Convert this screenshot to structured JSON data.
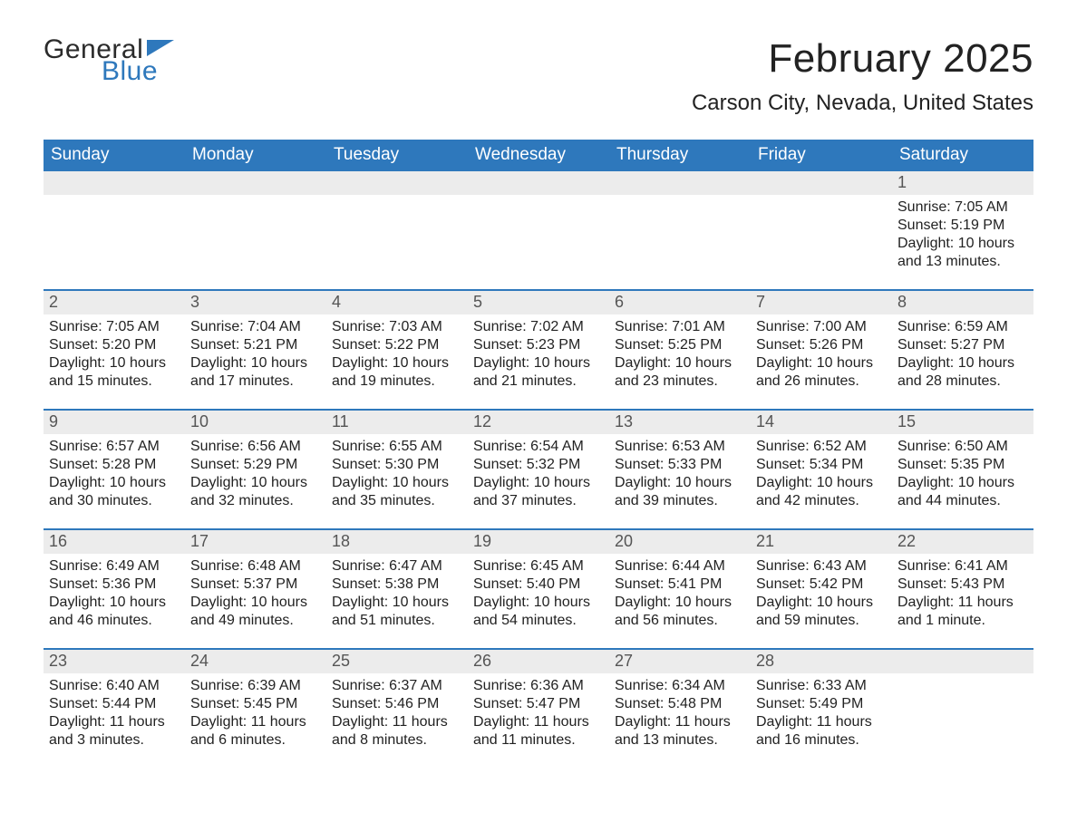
{
  "logo": {
    "word1": "General",
    "word2": "Blue",
    "word1_color": "#2b2b2b",
    "word2_color": "#2e78bc",
    "flag_color": "#2e78bc"
  },
  "header": {
    "title": "February 2025",
    "location": "Carson City, Nevada, United States",
    "title_fontsize": 44,
    "location_fontsize": 24
  },
  "colors": {
    "header_bar_bg": "#2e78bc",
    "header_bar_text": "#ffffff",
    "daynum_bg": "#ececec",
    "daynum_text": "#555555",
    "body_text": "#222222",
    "week_divider": "#2e78bc",
    "page_bg": "#ffffff"
  },
  "typography": {
    "weekday_fontsize": 19,
    "daynum_fontsize": 18,
    "cell_fontsize": 16,
    "font_family": "Arial"
  },
  "weekdays": [
    "Sunday",
    "Monday",
    "Tuesday",
    "Wednesday",
    "Thursday",
    "Friday",
    "Saturday"
  ],
  "weeks": [
    [
      null,
      null,
      null,
      null,
      null,
      null,
      {
        "day": "1",
        "sunrise": "Sunrise: 7:05 AM",
        "sunset": "Sunset: 5:19 PM",
        "daylight": "Daylight: 10 hours and 13 minutes."
      }
    ],
    [
      {
        "day": "2",
        "sunrise": "Sunrise: 7:05 AM",
        "sunset": "Sunset: 5:20 PM",
        "daylight": "Daylight: 10 hours and 15 minutes."
      },
      {
        "day": "3",
        "sunrise": "Sunrise: 7:04 AM",
        "sunset": "Sunset: 5:21 PM",
        "daylight": "Daylight: 10 hours and 17 minutes."
      },
      {
        "day": "4",
        "sunrise": "Sunrise: 7:03 AM",
        "sunset": "Sunset: 5:22 PM",
        "daylight": "Daylight: 10 hours and 19 minutes."
      },
      {
        "day": "5",
        "sunrise": "Sunrise: 7:02 AM",
        "sunset": "Sunset: 5:23 PM",
        "daylight": "Daylight: 10 hours and 21 minutes."
      },
      {
        "day": "6",
        "sunrise": "Sunrise: 7:01 AM",
        "sunset": "Sunset: 5:25 PM",
        "daylight": "Daylight: 10 hours and 23 minutes."
      },
      {
        "day": "7",
        "sunrise": "Sunrise: 7:00 AM",
        "sunset": "Sunset: 5:26 PM",
        "daylight": "Daylight: 10 hours and 26 minutes."
      },
      {
        "day": "8",
        "sunrise": "Sunrise: 6:59 AM",
        "sunset": "Sunset: 5:27 PM",
        "daylight": "Daylight: 10 hours and 28 minutes."
      }
    ],
    [
      {
        "day": "9",
        "sunrise": "Sunrise: 6:57 AM",
        "sunset": "Sunset: 5:28 PM",
        "daylight": "Daylight: 10 hours and 30 minutes."
      },
      {
        "day": "10",
        "sunrise": "Sunrise: 6:56 AM",
        "sunset": "Sunset: 5:29 PM",
        "daylight": "Daylight: 10 hours and 32 minutes."
      },
      {
        "day": "11",
        "sunrise": "Sunrise: 6:55 AM",
        "sunset": "Sunset: 5:30 PM",
        "daylight": "Daylight: 10 hours and 35 minutes."
      },
      {
        "day": "12",
        "sunrise": "Sunrise: 6:54 AM",
        "sunset": "Sunset: 5:32 PM",
        "daylight": "Daylight: 10 hours and 37 minutes."
      },
      {
        "day": "13",
        "sunrise": "Sunrise: 6:53 AM",
        "sunset": "Sunset: 5:33 PM",
        "daylight": "Daylight: 10 hours and 39 minutes."
      },
      {
        "day": "14",
        "sunrise": "Sunrise: 6:52 AM",
        "sunset": "Sunset: 5:34 PM",
        "daylight": "Daylight: 10 hours and 42 minutes."
      },
      {
        "day": "15",
        "sunrise": "Sunrise: 6:50 AM",
        "sunset": "Sunset: 5:35 PM",
        "daylight": "Daylight: 10 hours and 44 minutes."
      }
    ],
    [
      {
        "day": "16",
        "sunrise": "Sunrise: 6:49 AM",
        "sunset": "Sunset: 5:36 PM",
        "daylight": "Daylight: 10 hours and 46 minutes."
      },
      {
        "day": "17",
        "sunrise": "Sunrise: 6:48 AM",
        "sunset": "Sunset: 5:37 PM",
        "daylight": "Daylight: 10 hours and 49 minutes."
      },
      {
        "day": "18",
        "sunrise": "Sunrise: 6:47 AM",
        "sunset": "Sunset: 5:38 PM",
        "daylight": "Daylight: 10 hours and 51 minutes."
      },
      {
        "day": "19",
        "sunrise": "Sunrise: 6:45 AM",
        "sunset": "Sunset: 5:40 PM",
        "daylight": "Daylight: 10 hours and 54 minutes."
      },
      {
        "day": "20",
        "sunrise": "Sunrise: 6:44 AM",
        "sunset": "Sunset: 5:41 PM",
        "daylight": "Daylight: 10 hours and 56 minutes."
      },
      {
        "day": "21",
        "sunrise": "Sunrise: 6:43 AM",
        "sunset": "Sunset: 5:42 PM",
        "daylight": "Daylight: 10 hours and 59 minutes."
      },
      {
        "day": "22",
        "sunrise": "Sunrise: 6:41 AM",
        "sunset": "Sunset: 5:43 PM",
        "daylight": "Daylight: 11 hours and 1 minute."
      }
    ],
    [
      {
        "day": "23",
        "sunrise": "Sunrise: 6:40 AM",
        "sunset": "Sunset: 5:44 PM",
        "daylight": "Daylight: 11 hours and 3 minutes."
      },
      {
        "day": "24",
        "sunrise": "Sunrise: 6:39 AM",
        "sunset": "Sunset: 5:45 PM",
        "daylight": "Daylight: 11 hours and 6 minutes."
      },
      {
        "day": "25",
        "sunrise": "Sunrise: 6:37 AM",
        "sunset": "Sunset: 5:46 PM",
        "daylight": "Daylight: 11 hours and 8 minutes."
      },
      {
        "day": "26",
        "sunrise": "Sunrise: 6:36 AM",
        "sunset": "Sunset: 5:47 PM",
        "daylight": "Daylight: 11 hours and 11 minutes."
      },
      {
        "day": "27",
        "sunrise": "Sunrise: 6:34 AM",
        "sunset": "Sunset: 5:48 PM",
        "daylight": "Daylight: 11 hours and 13 minutes."
      },
      {
        "day": "28",
        "sunrise": "Sunrise: 6:33 AM",
        "sunset": "Sunset: 5:49 PM",
        "daylight": "Daylight: 11 hours and 16 minutes."
      },
      null
    ]
  ]
}
